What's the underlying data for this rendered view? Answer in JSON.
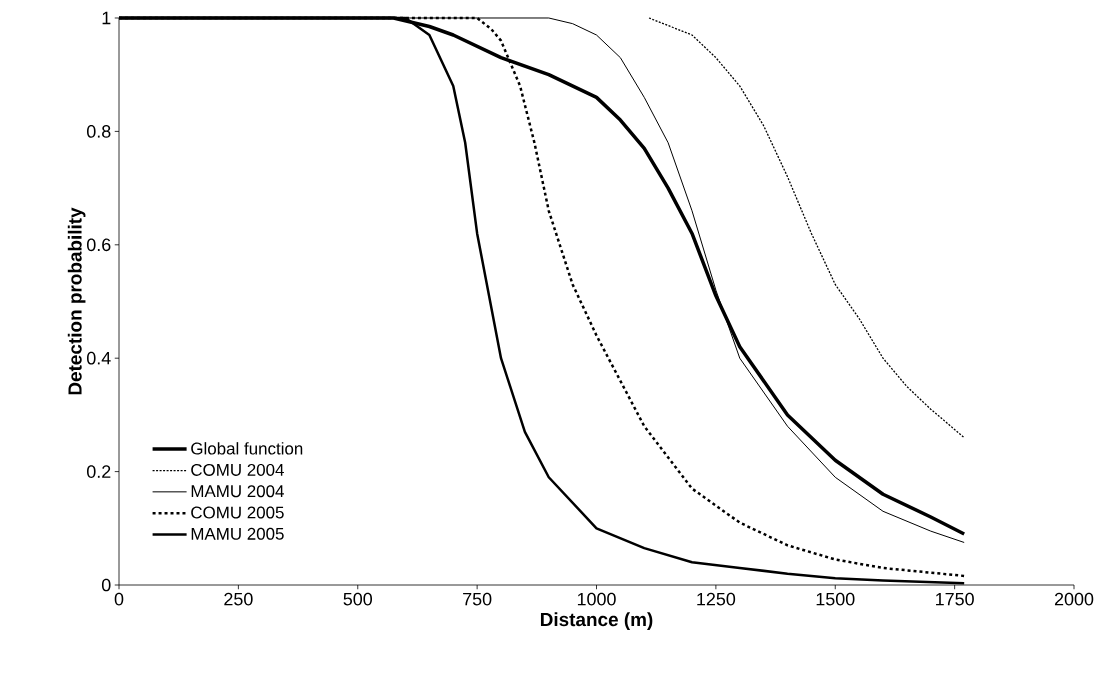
{
  "chart_data": {
    "type": "line",
    "xlabel": "Distance (m)",
    "ylabel": "Detection probability",
    "xlim": [
      0,
      2000
    ],
    "xticks": [
      0,
      250,
      500,
      750,
      1000,
      1250,
      1500,
      1750,
      2000
    ],
    "ylim": [
      0,
      1
    ],
    "yticks": [
      0,
      0.2,
      0.4,
      0.6,
      0.8,
      1
    ],
    "grid": false,
    "legend": "bottom left",
    "marker": "none",
    "series": [
      {
        "name": "Global function",
        "color": "#000000",
        "line_style": "solid",
        "x": [
          0,
          575,
          650,
          700,
          800,
          900,
          1000,
          1050,
          1100,
          1150,
          1200,
          1250,
          1300,
          1400,
          1500,
          1600,
          1700,
          1770
        ],
        "values": [
          1,
          1,
          0.985,
          0.97,
          0.93,
          0.9,
          0.86,
          0.82,
          0.77,
          0.7,
          0.62,
          0.51,
          0.42,
          0.3,
          0.22,
          0.16,
          0.12,
          0.09
        ]
      },
      {
        "name": "COMU 2004",
        "color": "#000000",
        "line_style": "dotted",
        "x": [
          1110,
          1200,
          1250,
          1300,
          1350,
          1400,
          1450,
          1500,
          1550,
          1600,
          1650,
          1700,
          1770
        ],
        "values": [
          1,
          0.97,
          0.93,
          0.88,
          0.81,
          0.72,
          0.62,
          0.53,
          0.47,
          0.4,
          0.35,
          0.31,
          0.26
        ]
      },
      {
        "name": "MAMU 2004",
        "color": "#000000",
        "line_style": "solid",
        "x": [
          0,
          900,
          950,
          1000,
          1050,
          1100,
          1150,
          1200,
          1250,
          1300,
          1400,
          1500,
          1600,
          1700,
          1770
        ],
        "values": [
          1,
          1,
          0.99,
          0.97,
          0.93,
          0.86,
          0.78,
          0.66,
          0.52,
          0.4,
          0.28,
          0.19,
          0.13,
          0.095,
          0.075
        ]
      },
      {
        "name": "COMU 2005",
        "color": "#000000",
        "line_style": "dashed",
        "x": [
          0,
          750,
          780,
          800,
          840,
          870,
          900,
          950,
          1000,
          1050,
          1100,
          1200,
          1300,
          1400,
          1500,
          1600,
          1770
        ],
        "values": [
          1,
          1,
          0.98,
          0.96,
          0.88,
          0.78,
          0.66,
          0.53,
          0.44,
          0.36,
          0.28,
          0.17,
          0.11,
          0.07,
          0.045,
          0.03,
          0.016
        ]
      },
      {
        "name": "MAMU 2005",
        "color": "#000000",
        "line_style": "solid",
        "x": [
          0,
          600,
          650,
          700,
          725,
          750,
          800,
          850,
          900,
          1000,
          1100,
          1200,
          1300,
          1400,
          1500,
          1600,
          1770
        ],
        "values": [
          1,
          1,
          0.97,
          0.88,
          0.78,
          0.62,
          0.4,
          0.27,
          0.19,
          0.1,
          0.065,
          0.04,
          0.03,
          0.02,
          0.012,
          0.008,
          0.003
        ]
      }
    ]
  }
}
